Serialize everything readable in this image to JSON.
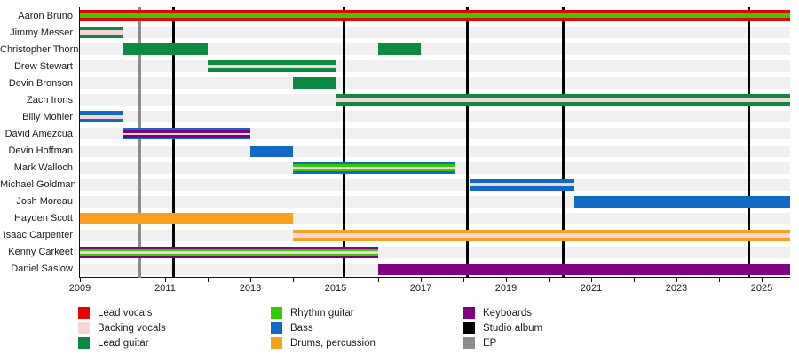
{
  "chart_data": {
    "type": "timeline",
    "description": "Band members timeline (gantt-style): horizontal bars show each member's tenure and roles by color; vertical lines mark releases.",
    "x_axis": {
      "start": 2009,
      "end": 2025.7,
      "tick_every_year_from": 2009,
      "tick_every_year_to": 2025,
      "label_years": [
        2009,
        2011,
        2013,
        2015,
        2017,
        2019,
        2021,
        2023,
        2025
      ]
    },
    "colors": {
      "lead_vocals": "#e60000",
      "backing_vocals": "#f5d5d5",
      "lead_guitar": "#0c8a43",
      "rhythm_guitar": "#33cc00",
      "bass": "#1269c4",
      "drums": "#f9a11d",
      "keyboards": "#800080",
      "studio_album": "#000000",
      "ep": "#8c8c8c"
    },
    "members": [
      {
        "name": "Aaron Bruno",
        "bars": [
          {
            "start": 2009.0,
            "end": 2025.7,
            "stripes": [
              "lead_vocals",
              "rhythm_guitar",
              "lead_vocals"
            ]
          }
        ]
      },
      {
        "name": "Jimmy Messer",
        "bars": [
          {
            "start": 2009.0,
            "end": 2010.0,
            "stripes": [
              "lead_guitar",
              "backing_vocals",
              "lead_guitar"
            ]
          }
        ]
      },
      {
        "name": "Christopher Thorn",
        "bars": [
          {
            "start": 2010.0,
            "end": 2012.0,
            "stripes": [
              "lead_guitar"
            ]
          },
          {
            "start": 2016.0,
            "end": 2017.0,
            "stripes": [
              "lead_guitar"
            ]
          }
        ]
      },
      {
        "name": "Drew Stewart",
        "bars": [
          {
            "start": 2012.0,
            "end": 2015.0,
            "stripes": [
              "lead_guitar",
              "backing_vocals",
              "lead_guitar"
            ]
          }
        ]
      },
      {
        "name": "Devin Bronson",
        "bars": [
          {
            "start": 2014.0,
            "end": 2015.0,
            "stripes": [
              "lead_guitar"
            ]
          }
        ]
      },
      {
        "name": "Zach Irons",
        "bars": [
          {
            "start": 2015.0,
            "end": 2025.7,
            "stripes": [
              "lead_guitar",
              "backing_vocals",
              "lead_guitar"
            ]
          }
        ]
      },
      {
        "name": "Billy Mohler",
        "bars": [
          {
            "start": 2009.0,
            "end": 2010.0,
            "stripes": [
              "bass",
              "backing_vocals",
              "bass"
            ]
          }
        ]
      },
      {
        "name": "David Amezcua",
        "bars": [
          {
            "start": 2010.0,
            "end": 2013.0,
            "stripes": [
              "bass",
              "keyboards",
              "backing_vocals",
              "keyboards",
              "bass"
            ]
          }
        ]
      },
      {
        "name": "Devin Hoffman",
        "bars": [
          {
            "start": 2013.0,
            "end": 2014.0,
            "stripes": [
              "bass"
            ]
          }
        ]
      },
      {
        "name": "Mark Walloch",
        "bars": [
          {
            "start": 2014.0,
            "end": 2017.8,
            "stripes": [
              "bass",
              "rhythm_guitar",
              "backing_vocals",
              "rhythm_guitar",
              "bass"
            ]
          }
        ]
      },
      {
        "name": "Michael Goldman",
        "bars": [
          {
            "start": 2018.15,
            "end": 2020.6,
            "stripes": [
              "bass",
              "backing_vocals",
              "bass"
            ]
          }
        ]
      },
      {
        "name": "Josh Moreau",
        "bars": [
          {
            "start": 2020.6,
            "end": 2025.7,
            "stripes": [
              "bass"
            ]
          }
        ]
      },
      {
        "name": "Hayden Scott",
        "bars": [
          {
            "start": 2009.0,
            "end": 2014.0,
            "stripes": [
              "drums"
            ]
          }
        ]
      },
      {
        "name": "Isaac Carpenter",
        "bars": [
          {
            "start": 2014.0,
            "end": 2025.7,
            "stripes": [
              "drums",
              "backing_vocals",
              "drums"
            ]
          }
        ]
      },
      {
        "name": "Kenny Carkeet",
        "bars": [
          {
            "start": 2009.0,
            "end": 2016.0,
            "stripes": [
              "keyboards",
              "rhythm_guitar",
              "backing_vocals",
              "rhythm_guitar",
              "keyboards"
            ]
          }
        ]
      },
      {
        "name": "Daniel Saslow",
        "bars": [
          {
            "start": 2016.0,
            "end": 2025.7,
            "stripes": [
              "keyboards"
            ]
          }
        ]
      }
    ],
    "releases": [
      {
        "type": "ep",
        "year": 2010.4
      },
      {
        "type": "studio_album",
        "year": 2011.2
      },
      {
        "type": "studio_album",
        "year": 2015.2
      },
      {
        "type": "studio_album",
        "year": 2018.1
      },
      {
        "type": "studio_album",
        "year": 2020.35
      },
      {
        "type": "studio_album",
        "year": 2024.7
      }
    ],
    "legend": {
      "columns": [
        [
          {
            "label": "Lead vocals",
            "color_key": "lead_vocals"
          },
          {
            "label": "Backing vocals",
            "color_key": "backing_vocals"
          },
          {
            "label": "Lead guitar",
            "color_key": "lead_guitar"
          }
        ],
        [
          {
            "label": "Rhythm guitar",
            "color_key": "rhythm_guitar"
          },
          {
            "label": "Bass",
            "color_key": "bass"
          },
          {
            "label": "Drums, percussion",
            "color_key": "drums"
          }
        ],
        [
          {
            "label": "Keyboards",
            "color_key": "keyboards"
          },
          {
            "label": "Studio album",
            "color_key": "studio_album"
          },
          {
            "label": "EP",
            "color_key": "ep"
          }
        ]
      ]
    }
  }
}
